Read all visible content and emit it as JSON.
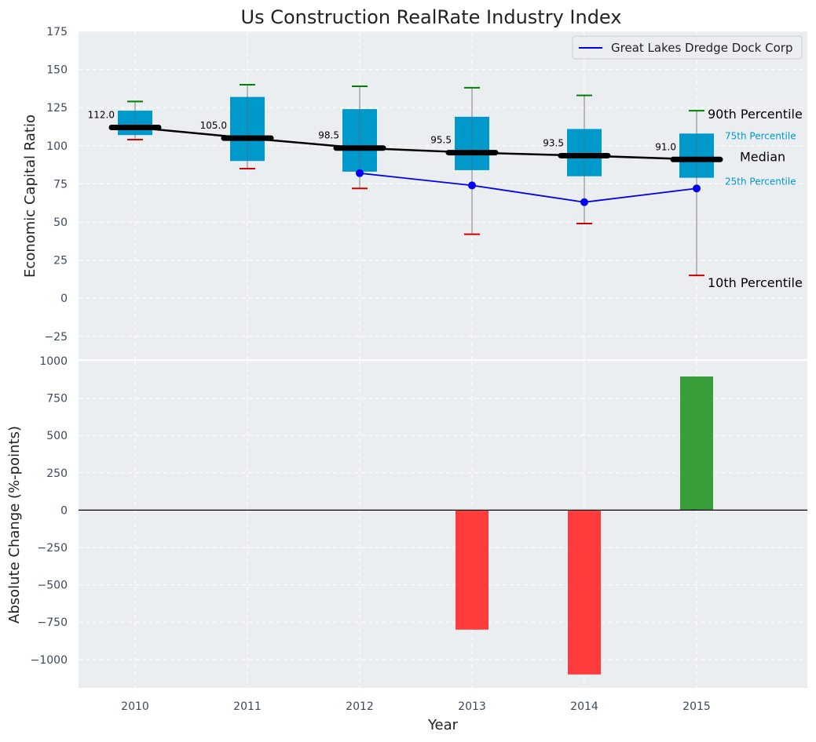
{
  "chart_data": [
    {
      "type": "box",
      "title": "Us Construction RealRate Industry Index",
      "ylabel": "Economic Capital Ratio",
      "ylim": [
        -40,
        175
      ],
      "yticks": [
        175,
        150,
        125,
        100,
        75,
        50,
        25,
        0,
        -25
      ],
      "ytick_labels": [
        "175",
        "150",
        "125",
        "100",
        "75",
        "50",
        "25",
        "0",
        "−25"
      ],
      "grid": true,
      "legend_position": "top-right",
      "categories": [
        "2010",
        "2011",
        "2012",
        "2013",
        "2014",
        "2015"
      ],
      "boxes": [
        {
          "p10": 104,
          "q1": 107,
          "median": 112.0,
          "q3": 123,
          "p90": 129,
          "median_label": "112.0"
        },
        {
          "p10": 85,
          "q1": 90,
          "median": 105.0,
          "q3": 132,
          "p90": 140,
          "median_label": "105.0"
        },
        {
          "p10": 72,
          "q1": 83,
          "median": 98.5,
          "q3": 124,
          "p90": 139,
          "median_label": "98.5"
        },
        {
          "p10": 42,
          "q1": 84,
          "median": 95.5,
          "q3": 119,
          "p90": 138,
          "median_label": "95.5"
        },
        {
          "p10": 49,
          "q1": 80,
          "median": 93.5,
          "q3": 111,
          "p90": 133,
          "median_label": "93.5"
        },
        {
          "p10": 15,
          "q1": 79,
          "median": 91.0,
          "q3": 108,
          "p90": 123,
          "median_label": "91.0"
        }
      ],
      "series": [
        {
          "name": "Great Lakes Dredge Dock Corp",
          "color": "#0000ee",
          "x": [
            "2012",
            "2013",
            "2014",
            "2015"
          ],
          "values": [
            82,
            74,
            63,
            72
          ]
        }
      ],
      "annotations": {
        "p90": "90th Percentile",
        "q3": "75th Percentile",
        "median": "Median",
        "q1": "25th Percentile",
        "p10": "10th Percentile"
      },
      "colors": {
        "box": "#0099cc",
        "median_line": "#000000",
        "whisker_top": "#008000",
        "whisker_bottom": "#d00000",
        "background": "#eaeef0"
      }
    },
    {
      "type": "bar",
      "ylabel": "Absolute Change (%-points)",
      "xlabel": "Year",
      "ylim": [
        -1190,
        1000
      ],
      "yticks": [
        1000,
        750,
        500,
        250,
        0,
        -250,
        -500,
        -750,
        -1000
      ],
      "ytick_labels": [
        "1000",
        "750",
        "500",
        "250",
        "0",
        "−250",
        "−500",
        "−750",
        "−1000"
      ],
      "grid": true,
      "categories": [
        "2010",
        "2011",
        "2012",
        "2013",
        "2014",
        "2015"
      ],
      "values": [
        0,
        0,
        0,
        -800,
        -1100,
        895
      ],
      "colors": {
        "positive": "#3a9e3a",
        "negative": "#ff3b3b"
      }
    }
  ]
}
